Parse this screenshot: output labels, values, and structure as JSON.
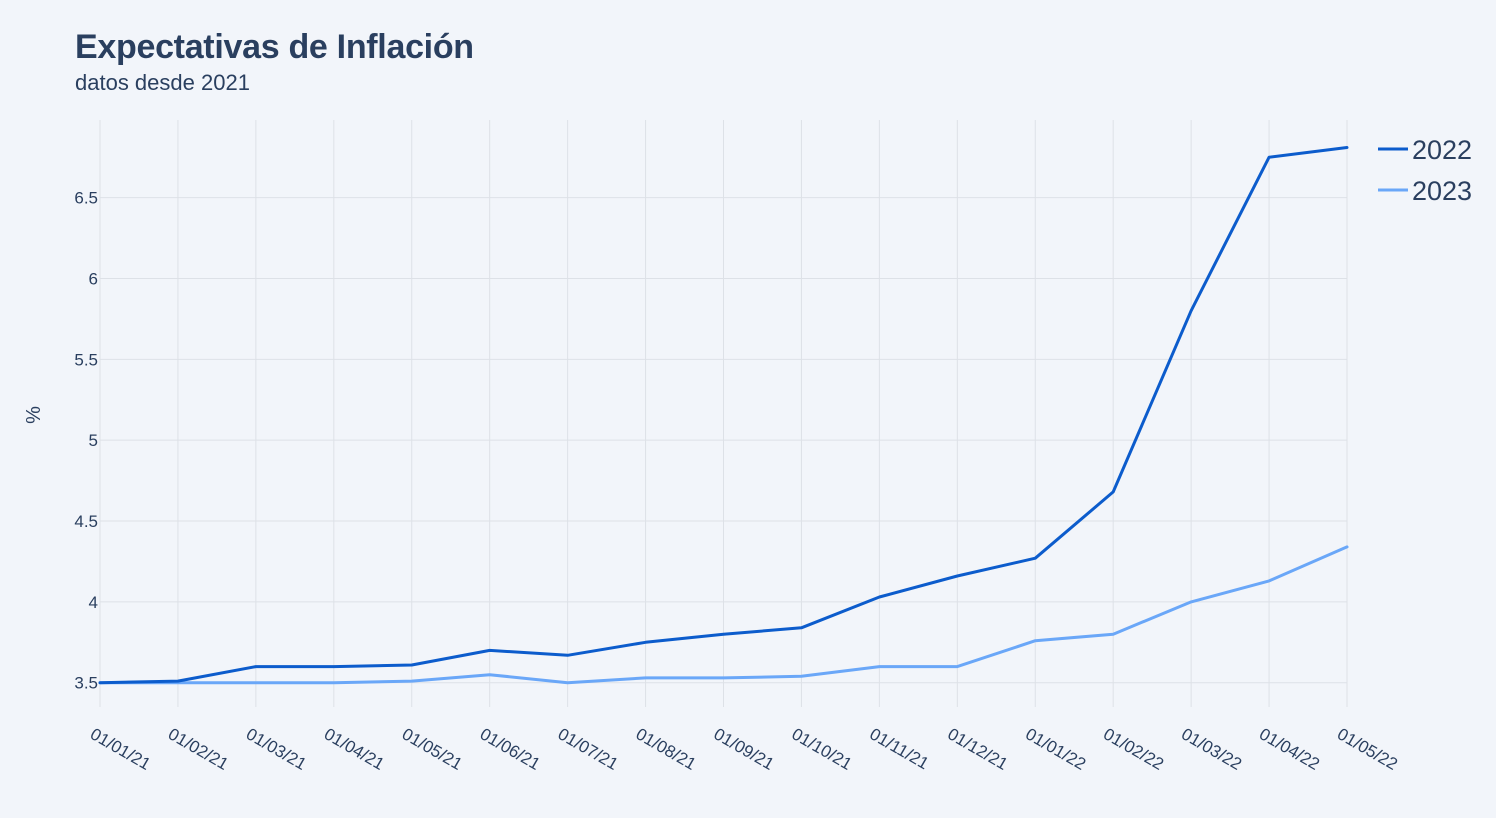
{
  "chart_data": {
    "type": "line",
    "title": "Expectativas de Inflación",
    "subtitle": "datos desde 2021",
    "xlabel": "",
    "ylabel": "%",
    "x": [
      "01/01/21",
      "01/02/21",
      "01/03/21",
      "01/04/21",
      "01/05/21",
      "01/06/21",
      "01/07/21",
      "01/08/21",
      "01/09/21",
      "01/10/21",
      "01/11/21",
      "01/12/21",
      "01/01/22",
      "01/02/22",
      "01/03/22",
      "01/04/22",
      "01/05/22"
    ],
    "ylim": [
      3.35,
      6.98
    ],
    "yticks": [
      3.5,
      4,
      4.5,
      5,
      5.5,
      6,
      6.5
    ],
    "ytick_labels": [
      "3.5",
      "4",
      "4.5",
      "5",
      "5.5",
      "6",
      "6.5"
    ],
    "grid": true,
    "legend_position": "top-right",
    "series": [
      {
        "name": "2022",
        "color": "#0c5ccc",
        "values": [
          3.5,
          3.51,
          3.6,
          3.6,
          3.61,
          3.7,
          3.67,
          3.75,
          3.8,
          3.84,
          4.03,
          4.16,
          4.27,
          4.68,
          5.8,
          6.75,
          6.81
        ]
      },
      {
        "name": "2023",
        "color": "#6aa7f8",
        "values": [
          3.5,
          3.5,
          3.5,
          3.5,
          3.51,
          3.55,
          3.5,
          3.53,
          3.53,
          3.54,
          3.6,
          3.6,
          3.76,
          3.8,
          4.0,
          4.13,
          4.34
        ]
      }
    ]
  }
}
